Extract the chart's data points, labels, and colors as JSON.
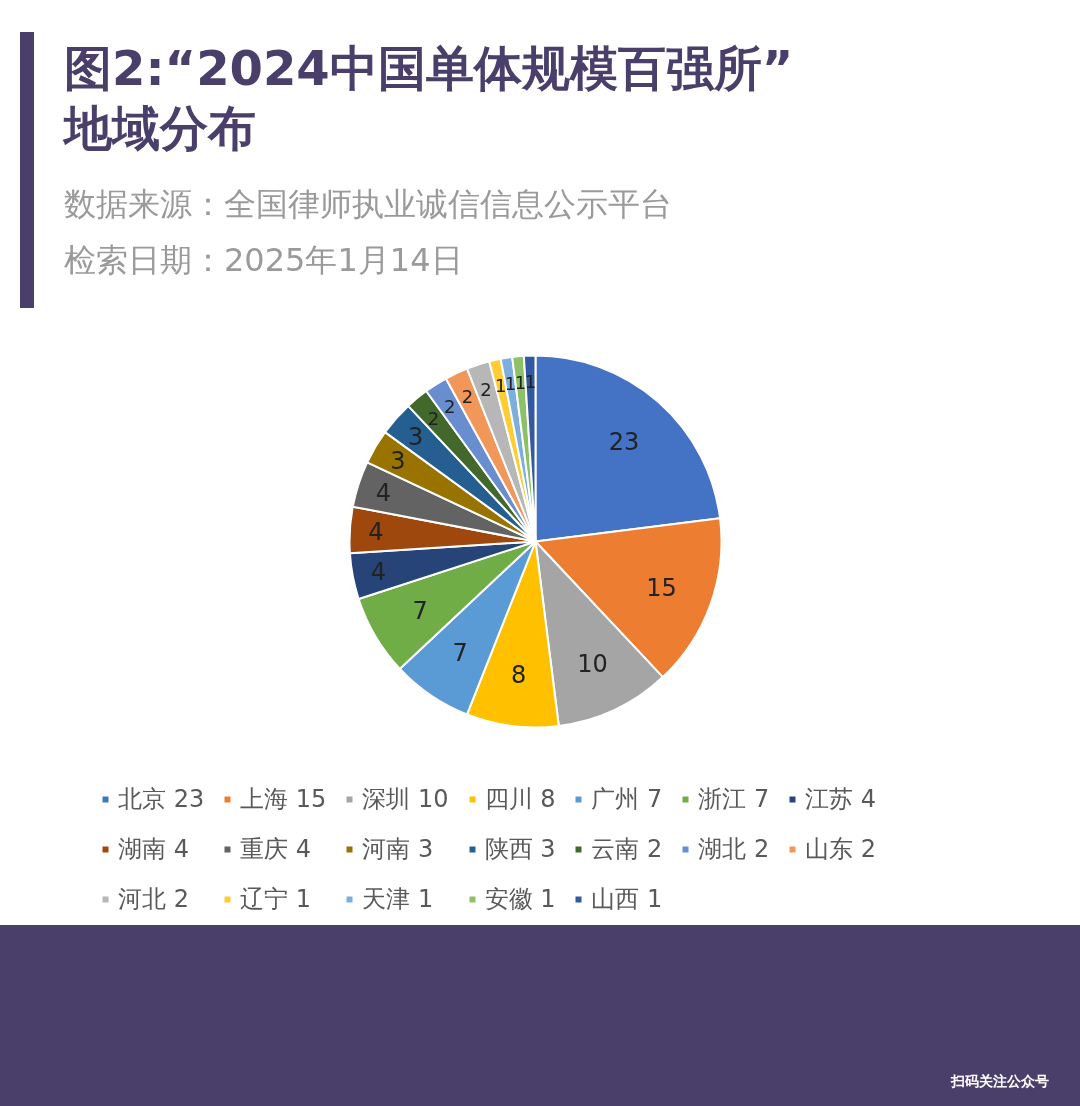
{
  "chart_data": {
    "type": "pie",
    "title": "图2:“2024中国单体规模百强所”\n地域分布",
    "subtitle": "数据来源：全国律师执业诚信信息公示平台",
    "annotations": [
      "检索日期：2025年1月14日",
      "扫码关注公众号"
    ],
    "categories": [
      "北京 23",
      "上海 15",
      "深圳 10",
      "四川 8",
      "广州 7",
      "浙江 7",
      "江苏 4",
      "湖南 4",
      "重庆 4",
      "河南 3",
      "陕西 3",
      "云南 2",
      "湖北 2",
      "山东 2",
      "河北 2",
      "辽宁 1",
      "天津 1",
      "安徽 1",
      "山西 1"
    ],
    "values": [
      23,
      15,
      10,
      8,
      7,
      7,
      4,
      4,
      4,
      3,
      3,
      2,
      2,
      2,
      2,
      1,
      1,
      1,
      1
    ],
    "colors": [
      "#4472c4",
      "#ed7d31",
      "#a5a5a5",
      "#ffc000",
      "#5b9bd5",
      "#70ad47",
      "#264478",
      "#9e480e",
      "#636363",
      "#997300",
      "#255e91",
      "#43682b",
      "#698ed0",
      "#f1975a",
      "#b7b7b7",
      "#ffcd33",
      "#7cafdd",
      "#8cc168",
      "#335aa1"
    ],
    "data_labels": true,
    "legend": "bottom"
  }
}
